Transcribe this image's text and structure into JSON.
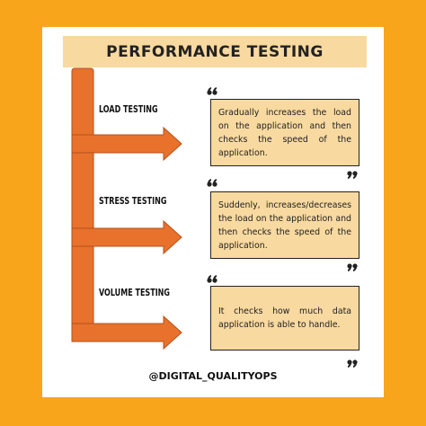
{
  "header": {
    "title": "PERFORMANCE TESTING"
  },
  "sections": [
    {
      "label": "LOAD TESTING",
      "text": "Gradually increases the load on the application and then checks the speed of the application."
    },
    {
      "label": "STRESS TESTING",
      "text": "Suddenly, increases/decreases the load on the application and then checks the speed of the application."
    },
    {
      "label": "VOLUME TESTING",
      "text": "It checks how much data application is able to handle."
    }
  ],
  "footer": "@DIGITAL_QUALITYOPS"
}
